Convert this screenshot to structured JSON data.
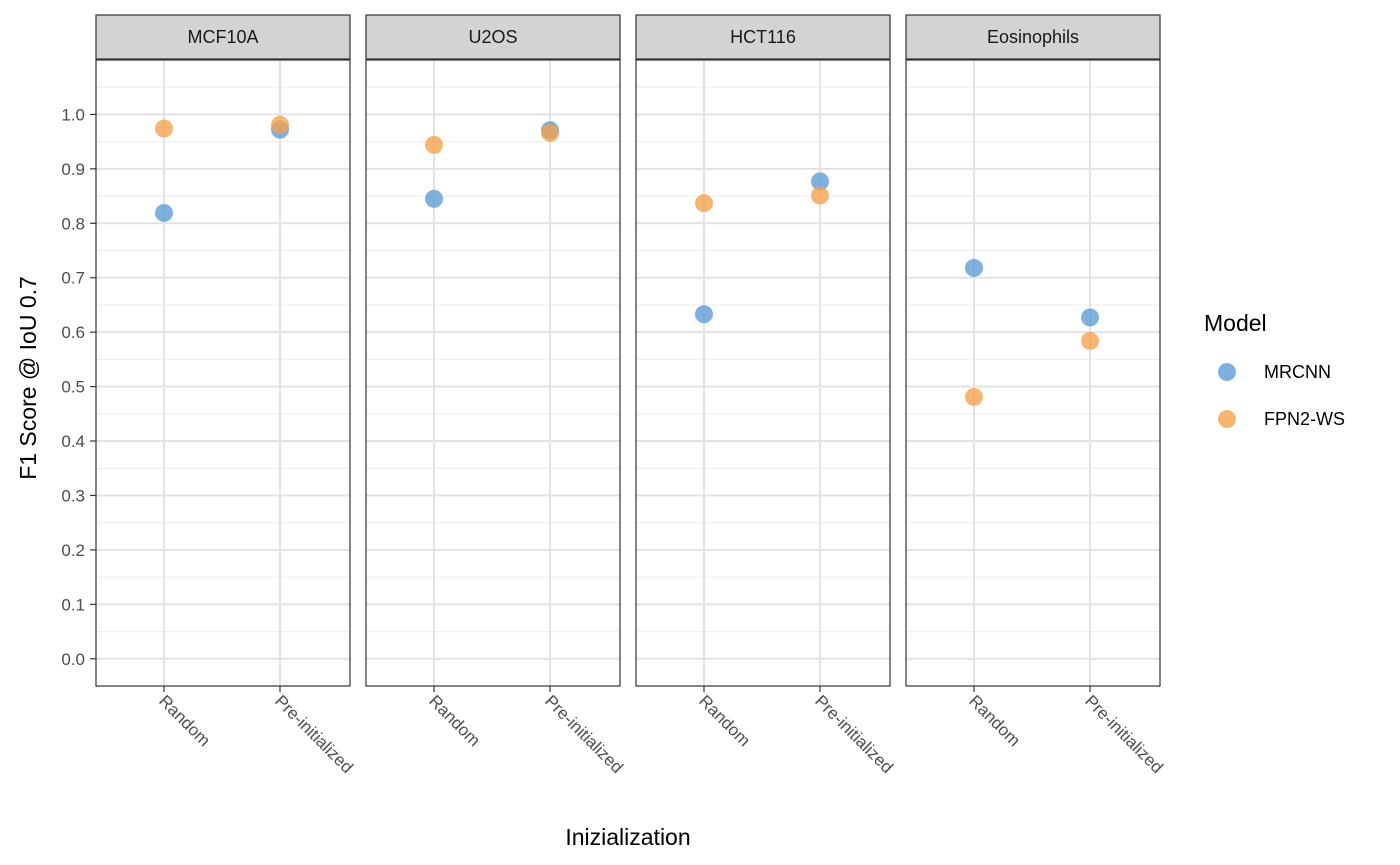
{
  "chart_data": {
    "type": "scatter",
    "xlabel": "Inizialization",
    "ylabel": "F1 Score @ IoU 0.7",
    "categories": [
      "Random",
      "Pre-initialized"
    ],
    "yticks": [
      "0.0",
      "0.1",
      "0.2",
      "0.3",
      "0.4",
      "0.5",
      "0.6",
      "0.7",
      "0.8",
      "0.9",
      "1.0"
    ],
    "ylim": [
      -0.05,
      1.1
    ],
    "grid": true,
    "legend": {
      "title": "Model",
      "position": "right",
      "entries": [
        {
          "name": "MRCNN",
          "color": "#5b9bd5"
        },
        {
          "name": "FPN2-WS",
          "color": "#f5a04a"
        }
      ]
    },
    "facets": [
      {
        "name": "MCF10A",
        "series": [
          {
            "name": "MRCNN",
            "values": [
              0.819,
              0.972
            ]
          },
          {
            "name": "FPN2-WS",
            "values": [
              0.974,
              0.981
            ]
          }
        ]
      },
      {
        "name": "U2OS",
        "series": [
          {
            "name": "MRCNN",
            "values": [
              0.845,
              0.971
            ]
          },
          {
            "name": "FPN2-WS",
            "values": [
              0.944,
              0.966
            ]
          }
        ]
      },
      {
        "name": "HCT116",
        "series": [
          {
            "name": "MRCNN",
            "values": [
              0.633,
              0.877
            ]
          },
          {
            "name": "FPN2-WS",
            "values": [
              0.837,
              0.851
            ]
          }
        ]
      },
      {
        "name": "Eosinophils",
        "series": [
          {
            "name": "MRCNN",
            "values": [
              0.718,
              0.627
            ]
          },
          {
            "name": "FPN2-WS",
            "values": [
              0.481,
              0.584
            ]
          }
        ]
      }
    ]
  }
}
